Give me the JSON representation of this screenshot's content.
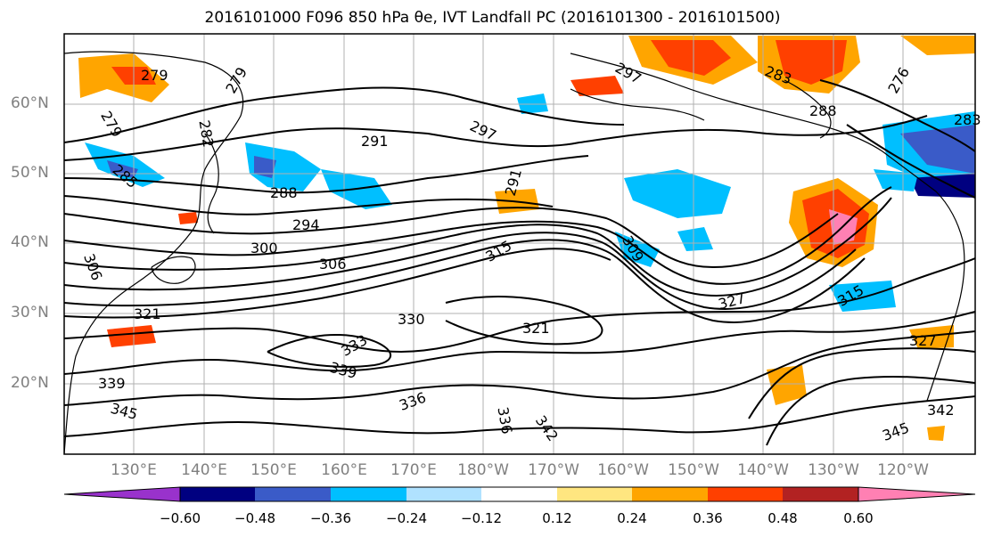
{
  "title": "2016101000 F096 850 hPa θe, IVT Landfall PC (2016101300 - 2016101500)",
  "lat_labels": [
    "60°N",
    "50°N",
    "40°N",
    "30°N",
    "20°N"
  ],
  "lon_labels": [
    "130°E",
    "140°E",
    "150°E",
    "160°E",
    "170°E",
    "180°W",
    "170°W",
    "160°W",
    "150°W",
    "140°W",
    "130°W",
    "120°W"
  ],
  "colorbar": {
    "ticks": [
      "−0.60",
      "−0.48",
      "−0.36",
      "−0.24",
      "−0.12",
      "0.12",
      "0.24",
      "0.36",
      "0.48",
      "0.60"
    ],
    "colors": [
      "#9932cc",
      "#000080",
      "#3a5bc8",
      "#00bfff",
      "#b0e2ff",
      "#ffffff",
      "#ffe680",
      "#ffa500",
      "#ff4000",
      "#b22222",
      "#ff80b3"
    ]
  },
  "contour_labels": [
    "279",
    "279",
    "279",
    "282",
    "285",
    "288",
    "291",
    "291",
    "294",
    "297",
    "297",
    "300",
    "306",
    "306",
    "309",
    "315",
    "315",
    "321",
    "321",
    "327",
    "327",
    "330",
    "333",
    "339",
    "339",
    "342",
    "342",
    "345",
    "345",
    "336",
    "336",
    "283",
    "276",
    "288",
    "283"
  ],
  "colors": {
    "warm": "#ffa500",
    "hot": "#ff4000",
    "cool": "#00bfff",
    "cold": "#3a5bc8",
    "pink": "#ff80b3",
    "yellow": "#ffe680"
  }
}
